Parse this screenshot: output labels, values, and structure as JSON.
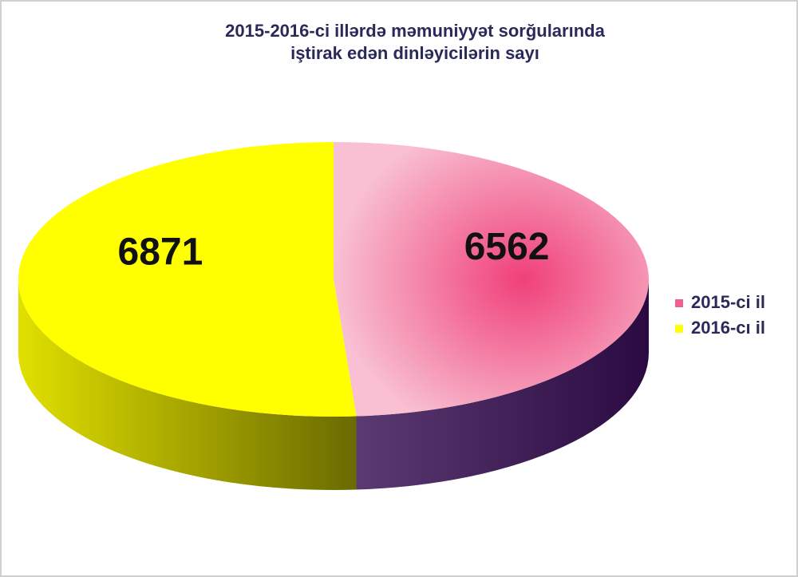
{
  "chart_data": {
    "type": "pie3d",
    "title": [
      "2015-2016-ci illərdə məmuniyyət sorğularında",
      "iştirak edən dinləyicilərin sayı"
    ],
    "categories": [
      "2015-ci il",
      "2016-cı il"
    ],
    "values": [
      6562,
      6871
    ],
    "colors": [
      "#f0608f",
      "#ffff00"
    ],
    "side_colors": [
      "#3a1650",
      "#8f8f00"
    ],
    "legend": "right"
  }
}
